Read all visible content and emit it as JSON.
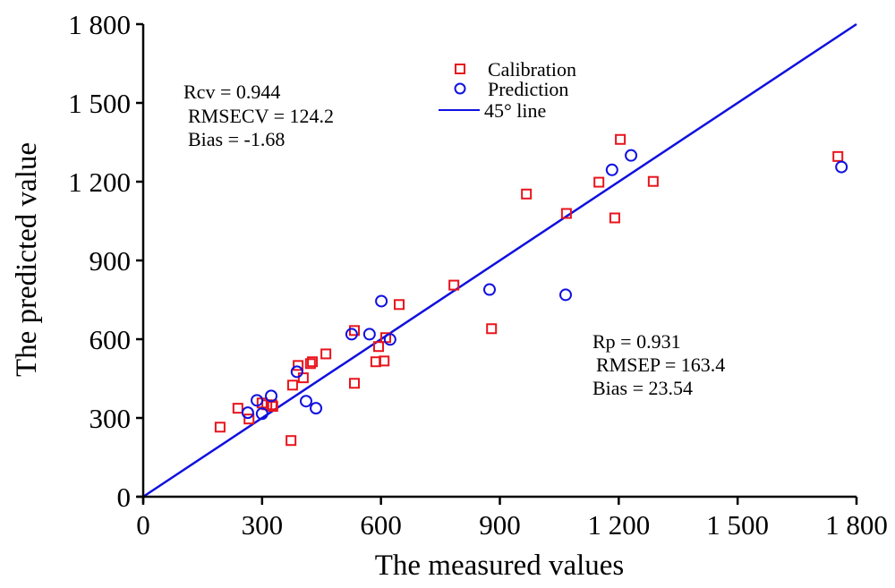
{
  "chart_data": {
    "type": "scatter",
    "title": "",
    "xlabel": "The measured values",
    "ylabel": "The predicted value",
    "xlim": [
      0,
      1800
    ],
    "ylim": [
      0,
      1800
    ],
    "x_ticks": [
      0,
      300,
      600,
      900,
      1200,
      1500,
      1800
    ],
    "y_ticks": [
      0,
      300,
      600,
      900,
      1200,
      1500,
      1800
    ],
    "x_tick_labels": [
      "0",
      "300",
      "600",
      "900",
      "1 200",
      "1 500",
      "1 800"
    ],
    "y_tick_labels": [
      "0",
      "300",
      "600",
      "900",
      "1 200",
      "1 500",
      "1 800"
    ],
    "grid": false,
    "legend_position": "top-center",
    "series": [
      {
        "name": "Calibration",
        "marker": "square",
        "color": "#e8141c",
        "points": [
          [
            194,
            265
          ],
          [
            239,
            337
          ],
          [
            267,
            296
          ],
          [
            300,
            357
          ],
          [
            312,
            350
          ],
          [
            325,
            350
          ],
          [
            327,
            344
          ],
          [
            373,
            214
          ],
          [
            377,
            425
          ],
          [
            391,
            500
          ],
          [
            404,
            453
          ],
          [
            422,
            507
          ],
          [
            427,
            514
          ],
          [
            461,
            544
          ],
          [
            533,
            432
          ],
          [
            533,
            633
          ],
          [
            594,
            572
          ],
          [
            587,
            514
          ],
          [
            608,
            517
          ],
          [
            612,
            606
          ],
          [
            646,
            732
          ],
          [
            784,
            806
          ],
          [
            879,
            640
          ],
          [
            967,
            1153
          ],
          [
            1068,
            1079
          ],
          [
            1150,
            1198
          ],
          [
            1190,
            1062
          ],
          [
            1204,
            1361
          ],
          [
            1287,
            1201
          ],
          [
            1753,
            1296
          ]
        ]
      },
      {
        "name": "Prediction",
        "marker": "circle",
        "color": "#1010e0",
        "points": [
          [
            264,
            320
          ],
          [
            287,
            367
          ],
          [
            300,
            316
          ],
          [
            323,
            384
          ],
          [
            388,
            476
          ],
          [
            411,
            364
          ],
          [
            436,
            337
          ],
          [
            526,
            619
          ],
          [
            571,
            619
          ],
          [
            601,
            745
          ],
          [
            623,
            599
          ],
          [
            874,
            789
          ],
          [
            1066,
            769
          ],
          [
            1183,
            1245
          ],
          [
            1231,
            1300
          ],
          [
            1762,
            1256
          ]
        ]
      },
      {
        "name": "45° line",
        "type": "line",
        "color": "#1010e0",
        "points": [
          [
            0,
            0
          ],
          [
            1800,
            1800
          ]
        ]
      }
    ],
    "annotations": {
      "calibration_stats": [
        "Rcv = 0.944",
        "RMSECV = 124.2",
        "Bias = -1.68"
      ],
      "prediction_stats": [
        "Rp = 0.931",
        "RMSEP = 163.4",
        "Bias = 23.54"
      ]
    }
  }
}
